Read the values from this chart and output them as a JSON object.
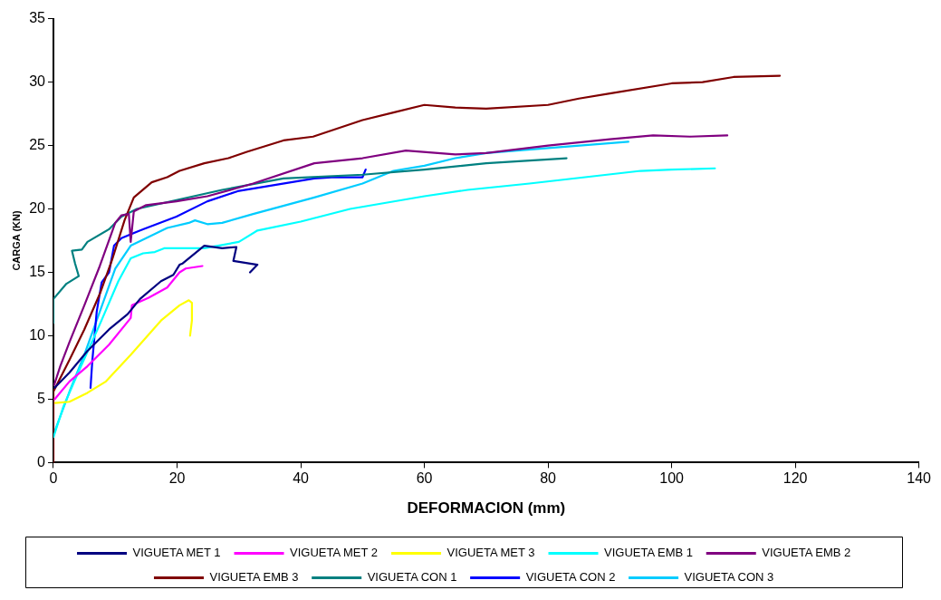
{
  "chart_data": {
    "type": "line",
    "xlabel": "DEFORMACION (mm)",
    "ylabel": "CARGA (KN)",
    "xlim": [
      0,
      140
    ],
    "xticks": [
      0,
      20,
      40,
      60,
      80,
      100,
      120,
      140
    ],
    "ylim": [
      0,
      35
    ],
    "yticks": [
      0,
      5,
      10,
      15,
      20,
      25,
      30,
      35
    ],
    "grid": false,
    "legend": "bottom",
    "marker": "none",
    "line_style": "solid",
    "series": [
      {
        "name": "VIGUETA MET 1",
        "color": "#000080",
        "x": [
          0.2,
          2.6,
          5.5,
          9,
          12,
          14,
          17.4,
          19.4,
          20.4,
          20.9,
          24.4,
          27.3,
          29.6,
          29.1,
          33,
          31.8
        ],
        "values": [
          5.9,
          7.1,
          8.8,
          10.5,
          11.7,
          12.9,
          14.3,
          14.8,
          15.6,
          15.7,
          17.1,
          16.9,
          17.0,
          15.9,
          15.6,
          15.0
        ]
      },
      {
        "name": "VIGUETA MET 2",
        "color": "#ff00ff",
        "x": [
          0.2,
          2.6,
          5.5,
          9,
          12.5,
          12.7,
          15.4,
          18.4,
          20.4,
          21.4,
          24.1
        ],
        "values": [
          5.0,
          6.4,
          7.6,
          9.3,
          11.4,
          12.4,
          13.0,
          13.8,
          15.0,
          15.3,
          15.5
        ]
      },
      {
        "name": "VIGUETA MET 3",
        "color": "#ffff00",
        "x": [
          0.3,
          2.6,
          5.5,
          8.5,
          12.5,
          17.4,
          20.4,
          21.9,
          22.4,
          22.4,
          22.1
        ],
        "values": [
          4.7,
          4.8,
          5.5,
          6.4,
          8.5,
          11.2,
          12.4,
          12.8,
          12.6,
          11.2,
          10.0
        ]
      },
      {
        "name": "VIGUETA EMB 1",
        "color": "#00ffff",
        "x": [
          0,
          1.6,
          4,
          7.5,
          10.5,
          12.5,
          14.5,
          16.4,
          17.9,
          24.4,
          30,
          33,
          40,
          48,
          60,
          67,
          77,
          86,
          95,
          100,
          107
        ],
        "values": [
          2.0,
          4.4,
          7.1,
          10.9,
          14.3,
          16.1,
          16.5,
          16.6,
          16.9,
          16.9,
          17.4,
          18.3,
          19.0,
          20.0,
          21.0,
          21.5,
          22.0,
          22.5,
          23.0,
          23.1,
          23.2
        ]
      },
      {
        "name": "VIGUETA EMB 2",
        "color": "#800080",
        "x": [
          0.1,
          1.1,
          2.6,
          5,
          7.5,
          10,
          11,
          12.2,
          12.5,
          13,
          15,
          19.9,
          24.9,
          32.3,
          42.2,
          50,
          57,
          65,
          70,
          80,
          90,
          97,
          103,
          109
        ],
        "values": [
          6.1,
          7.6,
          9.5,
          12.4,
          15.5,
          18.9,
          19.5,
          19.6,
          17.4,
          19.8,
          20.3,
          20.6,
          21.0,
          22.0,
          23.6,
          24.0,
          24.6,
          24.3,
          24.4,
          25.0,
          25.5,
          25.8,
          25.7,
          25.8
        ]
      },
      {
        "name": "VIGUETA EMB 3",
        "color": "#800000",
        "x": [
          0,
          0,
          2.6,
          5,
          7.5,
          9.5,
          11.5,
          13,
          15.9,
          18.4,
          20.4,
          24.4,
          28.3,
          31.3,
          37.2,
          42,
          50,
          55,
          60,
          65,
          70,
          80,
          85,
          90,
          100,
          105,
          110,
          117.5
        ],
        "values": [
          0,
          5.6,
          8.1,
          10.5,
          13.3,
          16.0,
          19.1,
          20.9,
          22.1,
          22.5,
          23.0,
          23.6,
          24.0,
          24.5,
          25.4,
          25.7,
          27.0,
          27.6,
          28.2,
          28.0,
          27.9,
          28.2,
          28.7,
          29.1,
          29.9,
          30.0,
          30.4,
          30.5
        ]
      },
      {
        "name": "VIGUETA CON 1",
        "color": "#008080",
        "x": [
          0,
          0,
          2.1,
          4.1,
          3.5,
          3,
          4.6,
          5.5,
          9,
          11,
          13.5,
          19.9,
          27.3,
          37.2,
          50,
          60,
          70,
          83
        ],
        "values": [
          11.0,
          12.9,
          14.1,
          14.7,
          15.7,
          16.7,
          16.8,
          17.4,
          18.4,
          19.4,
          20.0,
          20.7,
          21.5,
          22.4,
          22.7,
          23.1,
          23.6,
          24.0
        ]
      },
      {
        "name": "VIGUETA CON 2",
        "color": "#0000ff",
        "x": [
          6,
          6.3,
          7,
          7.8,
          9,
          9.8,
          11,
          14.5,
          19.9,
          24.9,
          29.8,
          42.2,
          45,
          50,
          50.5
        ],
        "values": [
          5.9,
          8.1,
          11.9,
          14.2,
          15.0,
          17.1,
          17.7,
          18.4,
          19.4,
          20.6,
          21.4,
          22.4,
          22.5,
          22.5,
          23.1
        ]
      },
      {
        "name": "VIGUETA CON 3",
        "color": "#00ccff",
        "x": [
          0,
          2.6,
          5,
          7.5,
          10,
          12.5,
          15,
          18.4,
          21.9,
          22.9,
          24.9,
          27.3,
          32.3,
          42.2,
          50,
          55,
          60,
          65,
          70,
          80,
          93
        ],
        "values": [
          2.2,
          5.6,
          8.5,
          11.9,
          15.3,
          17.1,
          17.7,
          18.5,
          18.9,
          19.1,
          18.8,
          18.9,
          19.6,
          20.9,
          22.0,
          23.0,
          23.4,
          24.0,
          24.4,
          24.8,
          25.3
        ]
      }
    ]
  }
}
